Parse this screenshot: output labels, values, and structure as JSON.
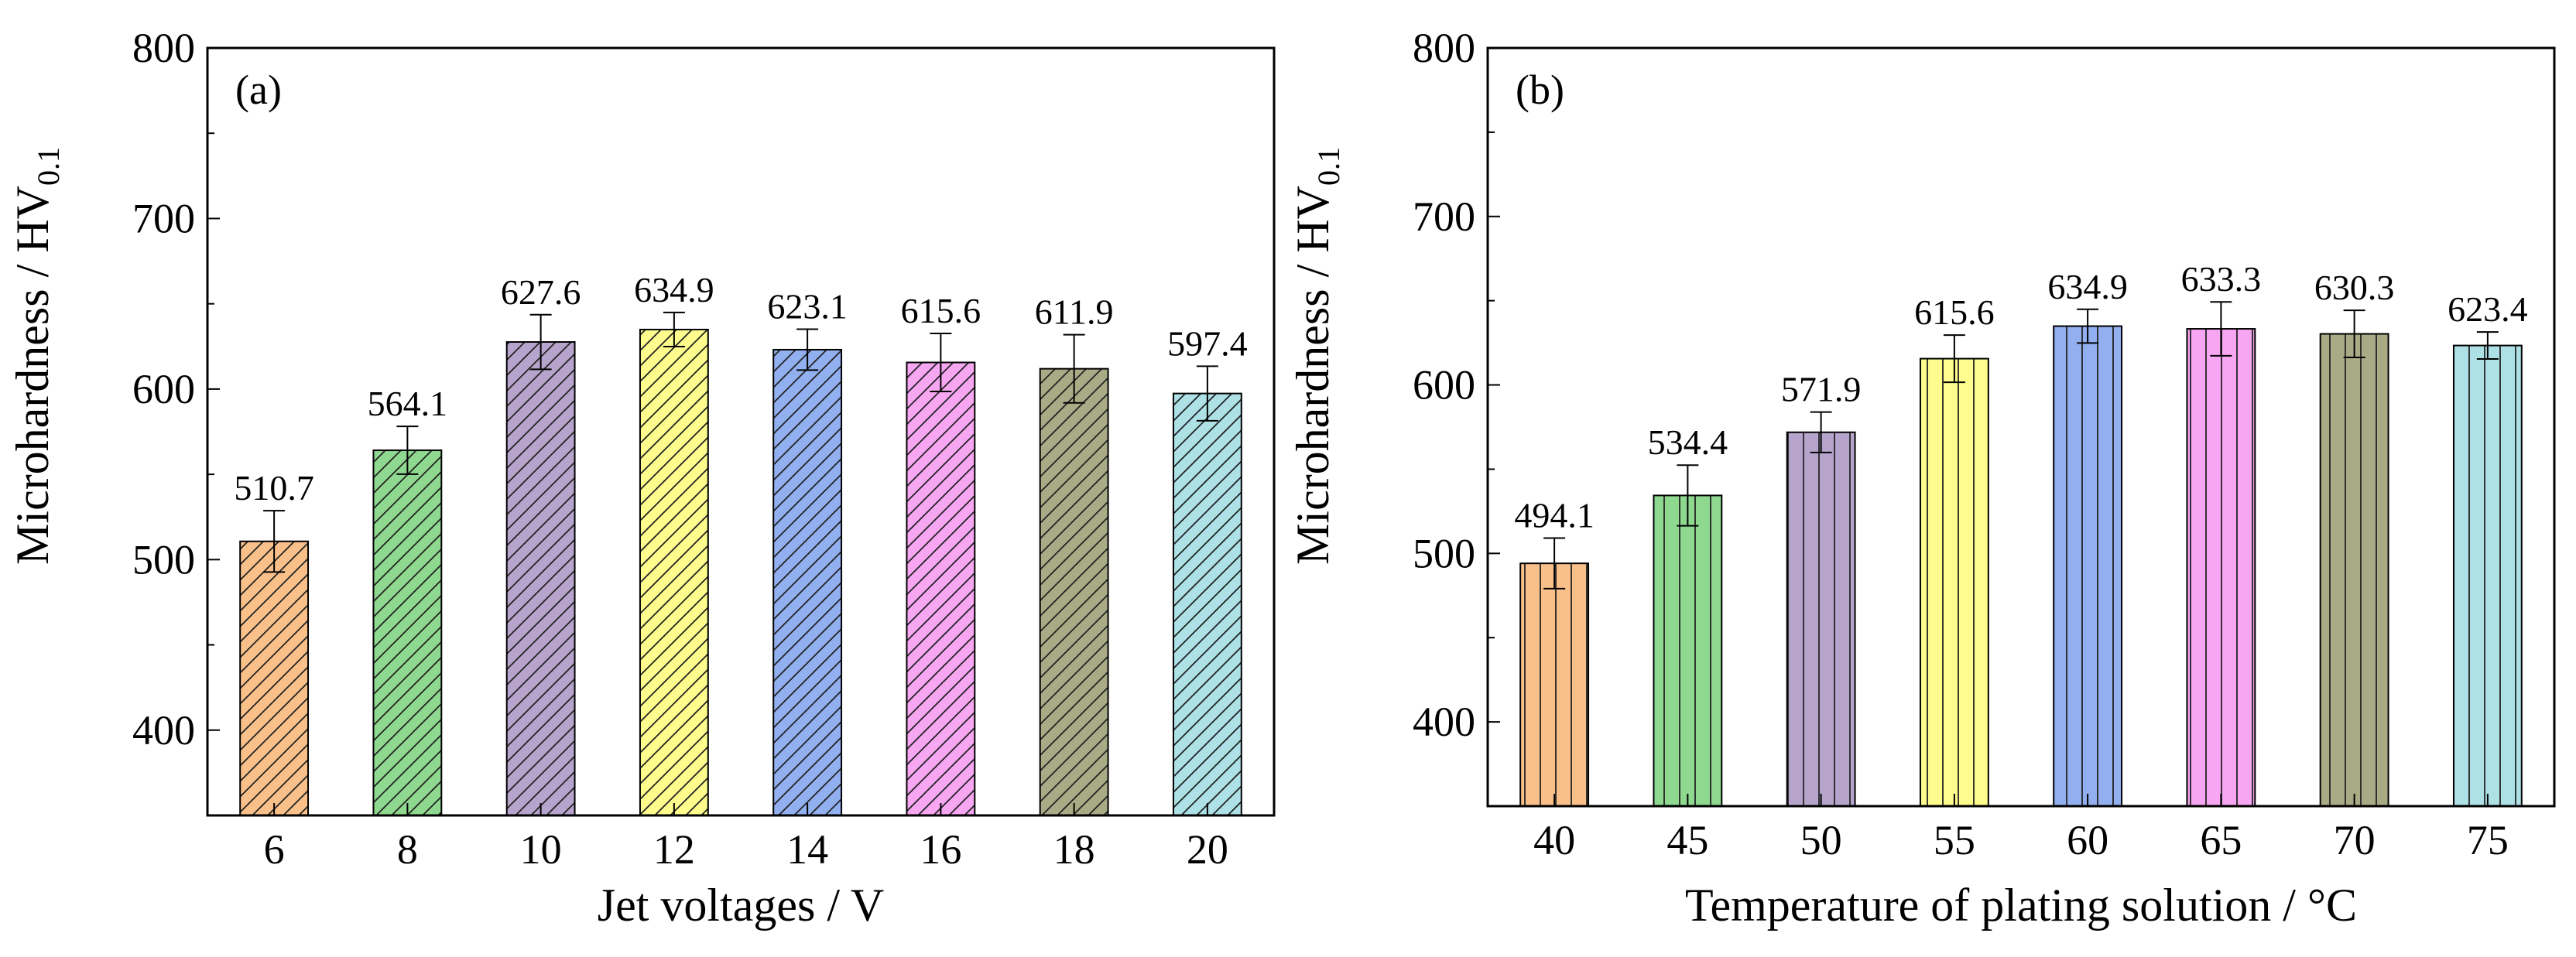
{
  "chart_data": [
    {
      "type": "bar",
      "panel_label": "(a)",
      "xlabel": "Jet voltages / V",
      "ylabel": "Microhardness / HV",
      "ylabel_subscript": "0.1",
      "categories": [
        "6",
        "8",
        "10",
        "12",
        "14",
        "16",
        "18",
        "20"
      ],
      "values": [
        510.7,
        564.1,
        627.6,
        634.9,
        623.1,
        615.6,
        611.9,
        597.4
      ],
      "value_labels": [
        "510.7",
        "564.1",
        "627.6",
        "634.9",
        "623.1",
        "615.6",
        "611.9",
        "597.4"
      ],
      "errors": [
        18,
        14,
        16,
        10,
        12,
        17,
        20,
        16
      ],
      "colors": [
        "#f9c08a",
        "#8fd88f",
        "#b7a4cd",
        "#fdfc8d",
        "#92afef",
        "#f7a6f2",
        "#a9ab86",
        "#ade1e6"
      ],
      "hatch": "diagonal",
      "ylim": [
        350,
        800
      ],
      "yticks": [
        400,
        500,
        600,
        700,
        800
      ],
      "grid": false,
      "legend": "none"
    },
    {
      "type": "bar",
      "panel_label": "(b)",
      "xlabel": "Temperature of plating solution / °C",
      "ylabel": "Microhardness / HV",
      "ylabel_subscript": "0.1",
      "categories": [
        "40",
        "45",
        "50",
        "55",
        "60",
        "65",
        "70",
        "75"
      ],
      "values": [
        494.1,
        534.4,
        571.9,
        615.6,
        634.9,
        633.3,
        630.3,
        623.4
      ],
      "value_labels": [
        "494.1",
        "534.4",
        "571.9",
        "615.6",
        "634.9",
        "633.3",
        "630.3",
        "623.4"
      ],
      "errors": [
        15,
        18,
        12,
        14,
        10,
        16,
        14,
        8
      ],
      "colors": [
        "#f9c08a",
        "#8fd88f",
        "#b7a4cd",
        "#fdfc8d",
        "#92afef",
        "#f7a6f2",
        "#a9ab86",
        "#ade1e6"
      ],
      "hatch": "vertical",
      "ylim": [
        350,
        800
      ],
      "yticks": [
        400,
        500,
        600,
        700,
        800
      ],
      "grid": false,
      "legend": "none"
    }
  ]
}
